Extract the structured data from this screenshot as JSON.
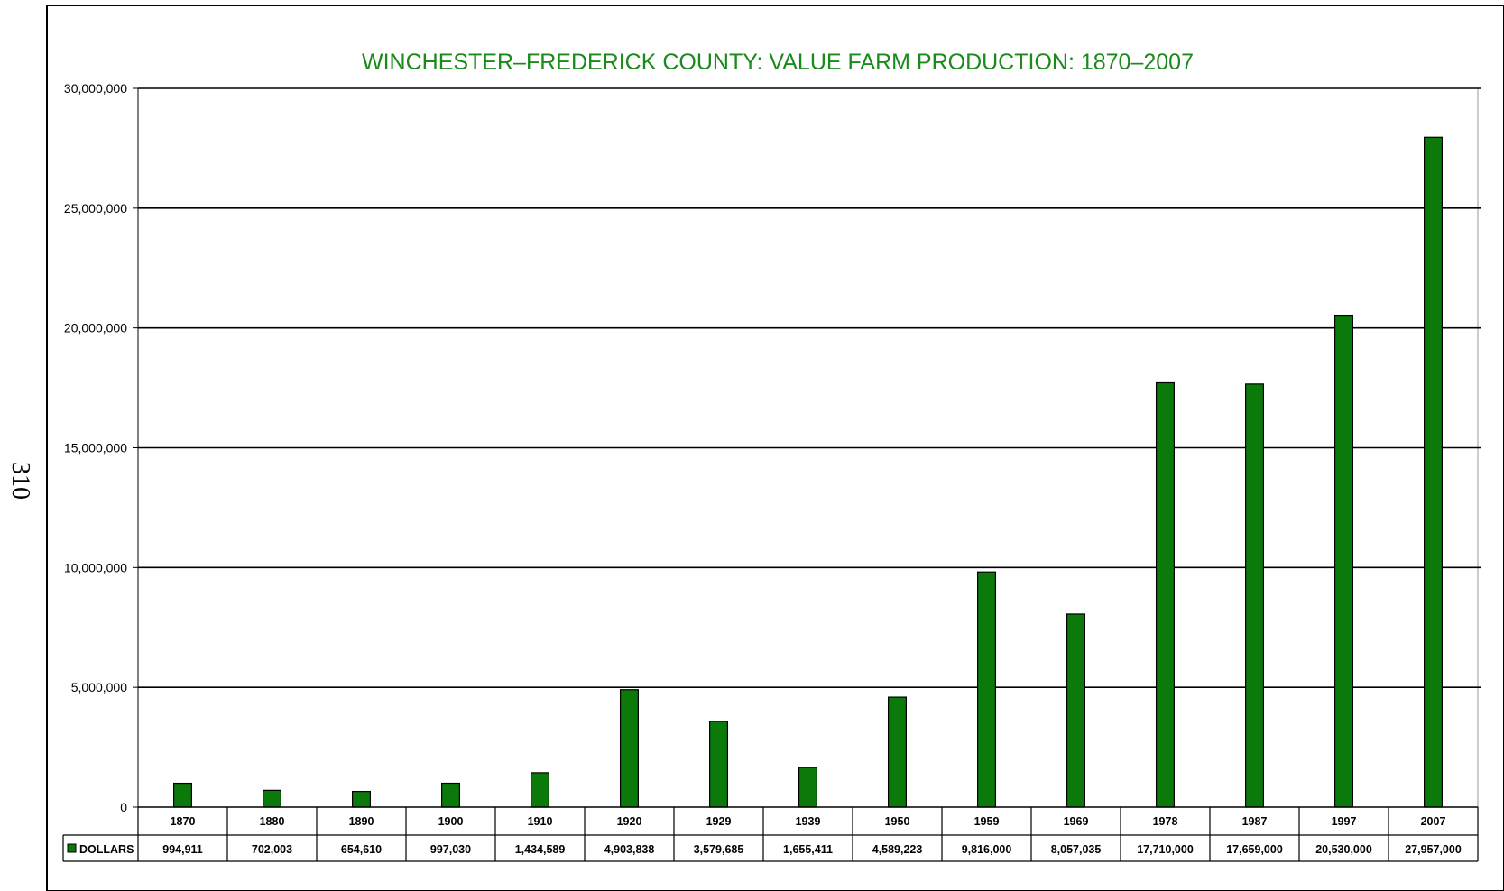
{
  "page_number": "310",
  "colors": {
    "bar_fill": "#0b7a0b",
    "bar_stroke": "#000000",
    "title": "#1a8a1a",
    "gridline": "#000000"
  },
  "chart_data": {
    "type": "bar",
    "title": "WINCHESTER–FREDERICK COUNTY: VALUE FARM PRODUCTION: 1870–2007",
    "xlabel": "",
    "ylabel": "",
    "categories": [
      "1870",
      "1880",
      "1890",
      "1900",
      "1910",
      "1920",
      "1929",
      "1939",
      "1950",
      "1959",
      "1969",
      "1978",
      "1987",
      "1997",
      "2007"
    ],
    "series": [
      {
        "name": "DOLLARS",
        "values": [
          994911,
          702003,
          654610,
          997030,
          1434589,
          4903838,
          3579685,
          1655411,
          4589223,
          9816000,
          8057035,
          17710000,
          17659000,
          20530000,
          27957000
        ],
        "data_labels": [
          "994,911",
          "702,003",
          "654,610",
          "997,030",
          "1,434,589",
          "4,903,838",
          "3,579,685",
          "1,655,411",
          "4,589,223",
          "9,816,000",
          "8,057,035",
          "17,710,000",
          "17,659,000",
          "20,530,000",
          "27,957,000"
        ]
      }
    ],
    "ylim": [
      0,
      30000000
    ],
    "yticks": [
      0,
      5000000,
      10000000,
      15000000,
      20000000,
      25000000,
      30000000
    ],
    "ytick_labels": [
      "0",
      "5,000,000",
      "10,000,000",
      "15,000,000",
      "20,000,000",
      "25,000,000",
      "30,000,000"
    ],
    "grid": true,
    "legend": "data-table"
  }
}
